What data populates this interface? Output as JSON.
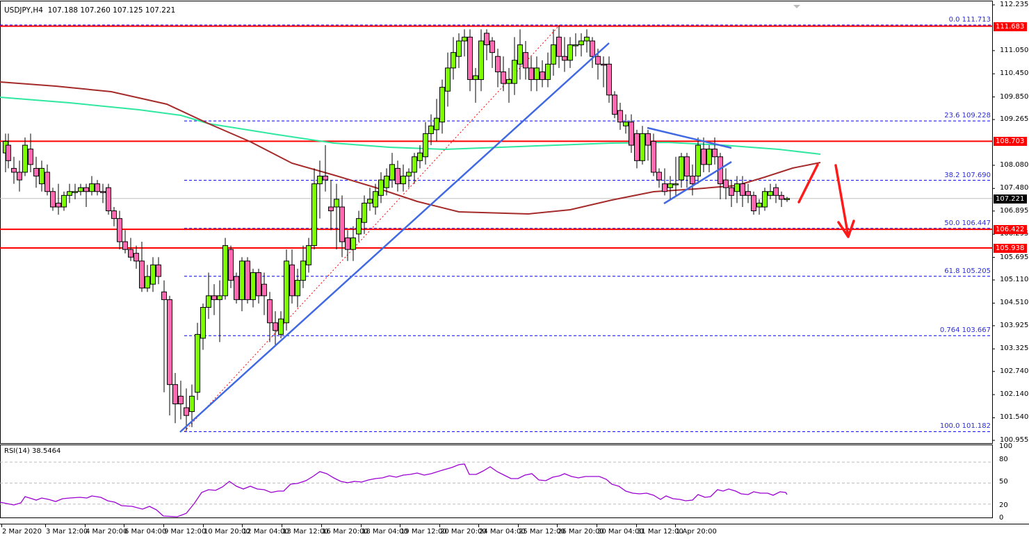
{
  "header": {
    "symbol": "USDJPY,H4",
    "ohlc": "107.188 107.260 107.125 107.221",
    "text": "USDJPY,H4  107.188 107.260 107.125 107.221"
  },
  "rsi": {
    "label": "RSI(14) 38.5464",
    "levels": [
      80,
      50,
      20
    ],
    "axis_ticks": [
      "100",
      "80",
      "50",
      "20",
      "0"
    ],
    "color": "#9b00d3"
  },
  "price_axis": {
    "ticks": [
      "112.235",
      "111.050",
      "110.450",
      "109.850",
      "109.265",
      "108.080",
      "107.480",
      "106.895",
      "106.295",
      "105.695",
      "105.110",
      "104.510",
      "103.925",
      "103.325",
      "102.740",
      "102.140",
      "101.540",
      "100.955"
    ],
    "current_price": "107.221"
  },
  "horizontal_levels": [
    {
      "price": "111.683",
      "color": "#ff0000"
    },
    {
      "price": "108.703",
      "color": "#ff0000"
    },
    {
      "price": "106.422",
      "color": "#ff0000"
    },
    {
      "price": "105.938",
      "color": "#ff0000"
    }
  ],
  "fibonacci": [
    {
      "label": "0.0 111.713"
    },
    {
      "label": "23.6 109.228"
    },
    {
      "label": "38.2 107.690"
    },
    {
      "label": "50.0 106.447"
    },
    {
      "label": "61.8 105.205"
    },
    {
      "label": "0.764 103.667"
    },
    {
      "label": "100.0 101.182"
    }
  ],
  "time_axis": [
    "2 Mar 2020",
    "3 Mar 12:00",
    "4 Mar 20:00",
    "6 Mar 04:00",
    "9 Mar 12:00",
    "10 Mar 20:00",
    "12 Mar 04:00",
    "13 Mar 12:00",
    "16 Mar 20:00",
    "18 Mar 04:00",
    "19 Mar 12:00",
    "20 Mar 20:00",
    "24 Mar 04:00",
    "25 Mar 12:00",
    "26 Mar 20:00",
    "30 Mar 04:00",
    "31 Mar 12:00",
    "1 Apr 20:00"
  ],
  "colors": {
    "bull": "#7cfc00",
    "bear": "#ff69b4",
    "ma_fast": "#a52a2a",
    "ma_slow": "#2ee8a0",
    "trendline": "#4169e1",
    "fib": "#0000ff",
    "level": "#ff0000"
  },
  "chart_data": {
    "type": "candlestick",
    "title": "USDJPY,H4",
    "ohlc_last": {
      "open": 107.188,
      "high": 107.26,
      "low": 107.125,
      "close": 107.221
    },
    "ylim": [
      100.955,
      112.235
    ],
    "x_labels": [
      "2 Mar 2020",
      "3 Mar 12:00",
      "4 Mar 20:00",
      "6 Mar 04:00",
      "9 Mar 12:00",
      "10 Mar 20:00",
      "12 Mar 04:00",
      "13 Mar 12:00",
      "16 Mar 20:00",
      "18 Mar 04:00",
      "19 Mar 12:00",
      "20 Mar 20:00",
      "24 Mar 04:00",
      "25 Mar 12:00",
      "26 Mar 20:00",
      "30 Mar 04:00",
      "31 Mar 12:00",
      "1 Apr 20:00"
    ],
    "support_resistance": [
      111.683,
      108.703,
      106.422,
      105.938
    ],
    "fib_levels": [
      {
        "ratio": "0.0",
        "price": 111.713
      },
      {
        "ratio": "23.6",
        "price": 109.228
      },
      {
        "ratio": "38.2",
        "price": 107.69
      },
      {
        "ratio": "50.0",
        "price": 106.447
      },
      {
        "ratio": "61.8",
        "price": 105.205
      },
      {
        "ratio": "0.764",
        "price": 103.667
      },
      {
        "ratio": "100.0",
        "price": 101.182
      }
    ],
    "key_swings": {
      "low": 101.182,
      "high": 111.713
    },
    "indicators": [
      {
        "name": "Moving average (brown)",
        "approx_end": 108.1
      },
      {
        "name": "Moving average (green)",
        "approx_end": 108.5
      },
      {
        "name": "RSI(14)",
        "value": 38.5464
      }
    ],
    "annotations": [
      "Rising trendline from 9 Mar low",
      "Triangle near 108.70",
      "Red arrow: bounce then drop toward 106.42"
    ],
    "grid": false
  }
}
